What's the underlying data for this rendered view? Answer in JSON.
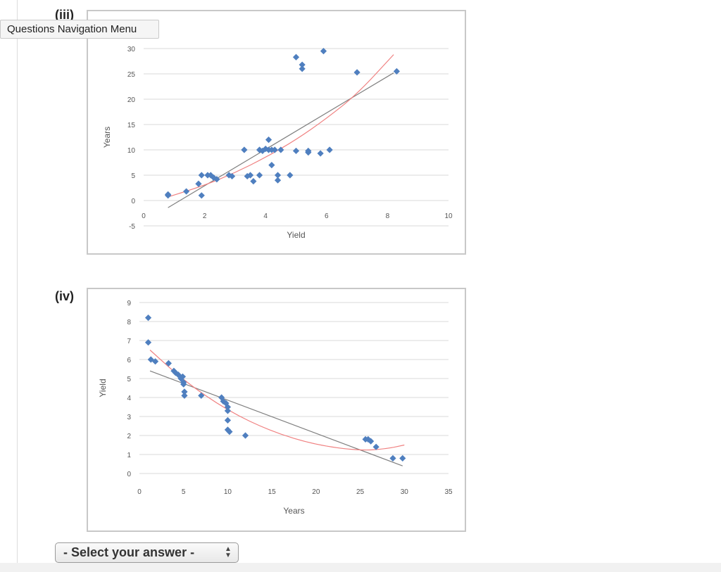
{
  "labels": {
    "iii": "(iii)",
    "iv": "(iv)"
  },
  "tooltip": "Questions Navigation Menu",
  "select": {
    "value": "- Select your answer -"
  },
  "icons": {
    "select_arrows": "up-down-chevrons-icon"
  },
  "colors": {
    "marker": "#4f7fbf",
    "linear_fit": "#7f7f7f",
    "poly_fit": "#f08080",
    "grid": "#d9d9d9"
  },
  "chart_data": [
    {
      "type": "scatter",
      "title": "",
      "xlabel": "Yield",
      "ylabel": "Years",
      "xlim": [
        0,
        10
      ],
      "ylim": [
        -5,
        30
      ],
      "xticks": [
        "0",
        "2",
        "4",
        "6",
        "8",
        "10"
      ],
      "yticks": [
        "-5",
        "0",
        "5",
        "10",
        "15",
        "20",
        "25",
        "30"
      ],
      "grid": "horizontal",
      "series": [
        {
          "marker": "diamond",
          "points": [
            [
              0.8,
              1
            ],
            [
              0.8,
              1.2
            ],
            [
              1.4,
              1.8
            ],
            [
              1.8,
              3.3
            ],
            [
              1.9,
              1
            ],
            [
              1.9,
              5
            ],
            [
              2.1,
              5
            ],
            [
              2.2,
              5
            ],
            [
              2.3,
              4.5
            ],
            [
              2.4,
              4.2
            ],
            [
              2.8,
              5
            ],
            [
              2.9,
              4.8
            ],
            [
              3.3,
              10
            ],
            [
              3.4,
              4.8
            ],
            [
              3.5,
              5
            ],
            [
              3.6,
              3.8
            ],
            [
              3.8,
              5
            ],
            [
              3.8,
              10
            ],
            [
              3.9,
              9.8
            ],
            [
              4.0,
              10.2
            ],
            [
              4.1,
              10
            ],
            [
              4.1,
              12
            ],
            [
              4.2,
              10
            ],
            [
              4.2,
              7
            ],
            [
              4.3,
              10
            ],
            [
              4.4,
              5
            ],
            [
              4.4,
              4
            ],
            [
              4.5,
              10
            ],
            [
              4.8,
              5
            ],
            [
              5.0,
              28.3
            ],
            [
              5.0,
              9.8
            ],
            [
              5.2,
              26.8
            ],
            [
              5.2,
              26
            ],
            [
              5.4,
              9.5
            ],
            [
              5.4,
              9.8
            ],
            [
              5.8,
              9.3
            ],
            [
              5.9,
              29.5
            ],
            [
              6.1,
              10
            ],
            [
              7.0,
              25.3
            ],
            [
              8.3,
              25.5
            ]
          ]
        }
      ],
      "trendlines": [
        {
          "kind": "linear",
          "from": [
            0.8,
            -1.4
          ],
          "to": [
            8.2,
            25.2
          ]
        },
        {
          "kind": "polynomial",
          "points": [
            [
              0.8,
              0.7
            ],
            [
              2,
              3
            ],
            [
              3,
              5.5
            ],
            [
              4,
              8.5
            ],
            [
              5,
              12
            ],
            [
              6,
              16.2
            ],
            [
              7,
              21
            ],
            [
              8.2,
              28.8
            ]
          ]
        }
      ]
    },
    {
      "type": "scatter",
      "title": "",
      "xlabel": "Years",
      "ylabel": "Yield",
      "xlim": [
        0,
        35
      ],
      "ylim": [
        0,
        9
      ],
      "xticks": [
        "0",
        "5",
        "10",
        "15",
        "20",
        "25",
        "30",
        "35"
      ],
      "yticks": [
        "0",
        "1",
        "2",
        "3",
        "4",
        "5",
        "6",
        "7",
        "8",
        "9"
      ],
      "grid": "horizontal",
      "series": [
        {
          "marker": "diamond",
          "points": [
            [
              1,
              8.2
            ],
            [
              1,
              6.9
            ],
            [
              1.3,
              6
            ],
            [
              1.8,
              5.9
            ],
            [
              3.3,
              5.8
            ],
            [
              3.9,
              5.4
            ],
            [
              4.1,
              5.3
            ],
            [
              4.4,
              5.2
            ],
            [
              4.7,
              5
            ],
            [
              4.9,
              5.1
            ],
            [
              5,
              4.8
            ],
            [
              5,
              4.7
            ],
            [
              5.1,
              4.3
            ],
            [
              5.1,
              4.1
            ],
            [
              7,
              4.1
            ],
            [
              9.3,
              4
            ],
            [
              9.5,
              3.8
            ],
            [
              9.8,
              3.7
            ],
            [
              10,
              3.5
            ],
            [
              10,
              3.3
            ],
            [
              10,
              2.8
            ],
            [
              10,
              2.3
            ],
            [
              10.2,
              2.2
            ],
            [
              12,
              2
            ],
            [
              25.6,
              1.8
            ],
            [
              25.9,
              1.8
            ],
            [
              26.2,
              1.7
            ],
            [
              26.8,
              1.4
            ],
            [
              28.7,
              0.8
            ],
            [
              29.8,
              0.8
            ]
          ]
        }
      ],
      "trendlines": [
        {
          "kind": "linear",
          "from": [
            1.2,
            5.4
          ],
          "to": [
            29.8,
            0.4
          ]
        },
        {
          "kind": "polynomial",
          "points": [
            [
              1.2,
              6.5
            ],
            [
              5,
              4.9
            ],
            [
              10,
              3.3
            ],
            [
              15,
              2.2
            ],
            [
              20,
              1.5
            ],
            [
              25,
              1.2
            ],
            [
              28,
              1.3
            ],
            [
              30,
              1.5
            ]
          ]
        }
      ]
    }
  ]
}
